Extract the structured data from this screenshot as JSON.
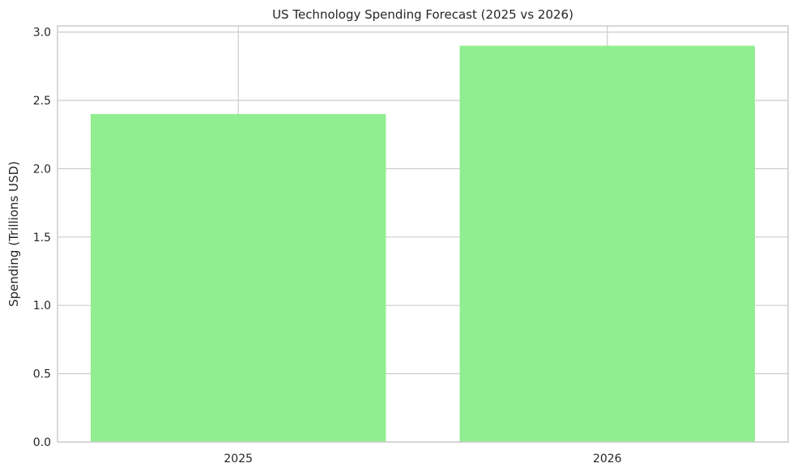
{
  "chart_data": {
    "type": "bar",
    "title": "US Technology Spending Forecast (2025 vs 2026)",
    "xlabel": "",
    "ylabel": "Spending (Trillions USD)",
    "categories": [
      "2025",
      "2026"
    ],
    "values": [
      2.4,
      2.9
    ],
    "ylim": [
      0,
      3.045
    ],
    "yticks": [
      "0.0",
      "0.5",
      "1.0",
      "1.5",
      "2.0",
      "2.5",
      "3.0"
    ],
    "grid": true,
    "bar_color": "#90ee90",
    "grid_color": "#cccccc",
    "spine_color": "#cccccc"
  }
}
